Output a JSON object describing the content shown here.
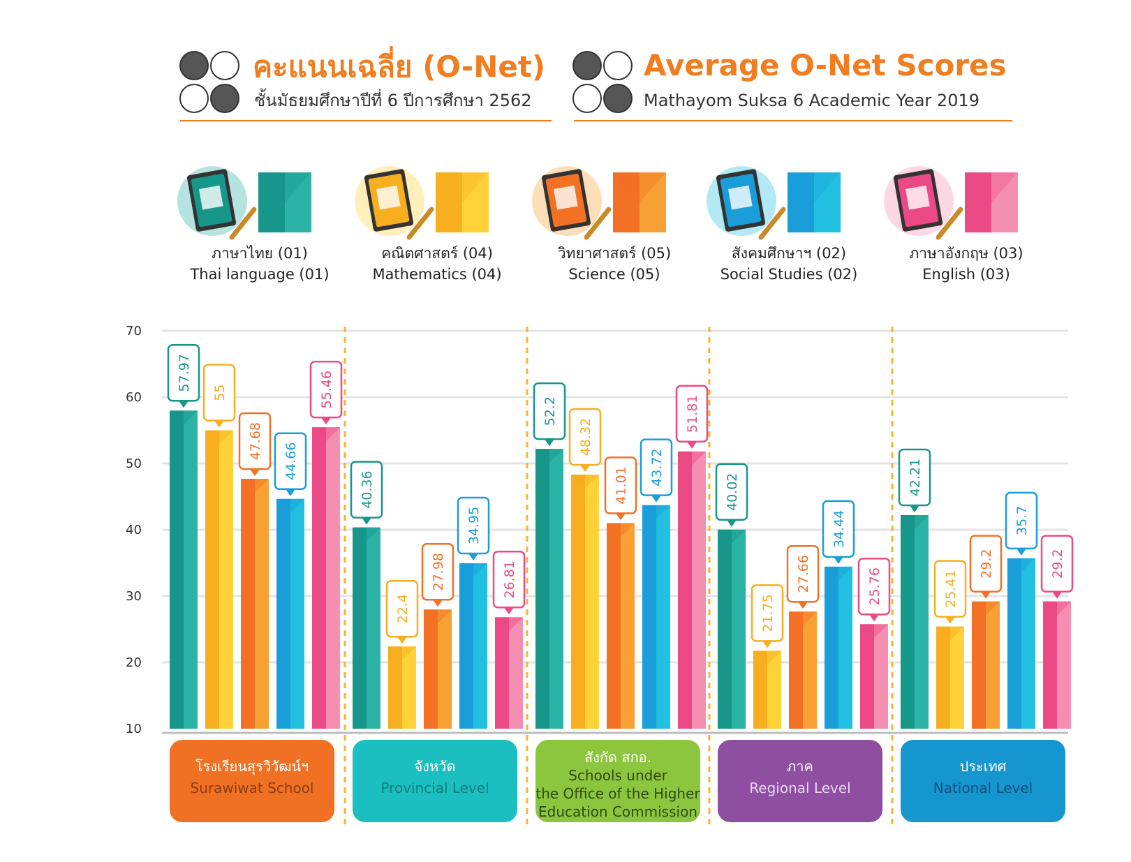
{
  "header": {
    "title_th": "คะแนนเฉลี่ย (O-Net)",
    "subtitle_th": "ชั้นมัธยมศึกษาปีที่ 6 ปีการศึกษา 2562",
    "title_en": "Average O-Net Scores",
    "subtitle_en": "Mathayom Suksa 6 Academic Year 2019"
  },
  "subjects": [
    {
      "th": "ภาษาไทย (01)",
      "en": "Thai language (01)",
      "color": "#17968a",
      "color_light": "#2bb3a5",
      "icon": "thai-book-icon"
    },
    {
      "th": "คณิตศาสตร์ (04)",
      "en": "Mathematics (04)",
      "color": "#f7ae1f",
      "color_light": "#ffd23a",
      "icon": "math-book-icon"
    },
    {
      "th": "วิทยาศาสตร์ (05)",
      "en": "Science (05)",
      "color": "#f27125",
      "color_light": "#f7a033",
      "icon": "science-book-icon"
    },
    {
      "th": "สังคมศึกษาฯ (02)",
      "en": "Social Studies (02)",
      "color": "#1a9ed9",
      "color_light": "#22c0e0",
      "icon": "globe-book-icon"
    },
    {
      "th": "ภาษาอังกฤษ (03)",
      "en": "English (03)",
      "color": "#ec4a84",
      "color_light": "#f48fb1",
      "icon": "english-book-icon"
    }
  ],
  "chart_data": {
    "type": "bar",
    "y_ticks": [
      "70",
      "60",
      "50",
      "40",
      "30",
      "20",
      "10"
    ],
    "ylim": [
      10,
      70
    ],
    "grid": true,
    "categories": [
      {
        "th": "โรงเรียนสุรวิวัฒน์ฯ",
        "en": "Surawiwat School",
        "color": "#f07124",
        "en_color": "#8a3c0e"
      },
      {
        "th": "จังหวัด",
        "en": "Provincial Level",
        "color": "#1bbfbf",
        "en_color": "#0f7d80"
      },
      {
        "th": "สังกัด สกอ.",
        "en": "Schools under the Office of the Higher Education Commission",
        "en_lines": [
          "Schools under",
          "the Office of the Higher",
          "Education Commission"
        ],
        "color": "#8cc63f",
        "en_color": "#2e4a10"
      },
      {
        "th": "ภาค",
        "en": "Regional Level",
        "color": "#8e4fa0",
        "en_color": "#e8d6f0"
      },
      {
        "th": "ประเทศ",
        "en": "National Level",
        "color": "#1596cf",
        "en_color": "#0b4f80"
      }
    ],
    "series": [
      {
        "name": "Thai language (01)",
        "values": [
          57.97,
          40.36,
          52.2,
          40.02,
          42.21
        ],
        "labels": [
          "57.97",
          "40.36",
          "52.2",
          "40.02",
          "42.21"
        ]
      },
      {
        "name": "Mathematics (04)",
        "values": [
          55,
          22.4,
          48.32,
          21.75,
          25.41
        ],
        "labels": [
          "55",
          "22.4",
          "48.32",
          "21.75",
          "25.41"
        ]
      },
      {
        "name": "Science (05)",
        "values": [
          47.68,
          27.98,
          41.01,
          27.66,
          29.2
        ],
        "labels": [
          "47.68",
          "27.98",
          "41.01",
          "27.66",
          "29.2"
        ]
      },
      {
        "name": "Social Studies (02)",
        "values": [
          44.66,
          34.95,
          43.72,
          34.44,
          35.7
        ],
        "labels": [
          "44.66",
          "34.95",
          "43.72",
          "34.44",
          "35.7"
        ]
      },
      {
        "name": "English (03)",
        "values": [
          55.46,
          26.81,
          51.81,
          25.76,
          29.2
        ],
        "labels": [
          "55.46",
          "26.81",
          "51.81",
          "25.76",
          "29.2"
        ]
      }
    ]
  }
}
